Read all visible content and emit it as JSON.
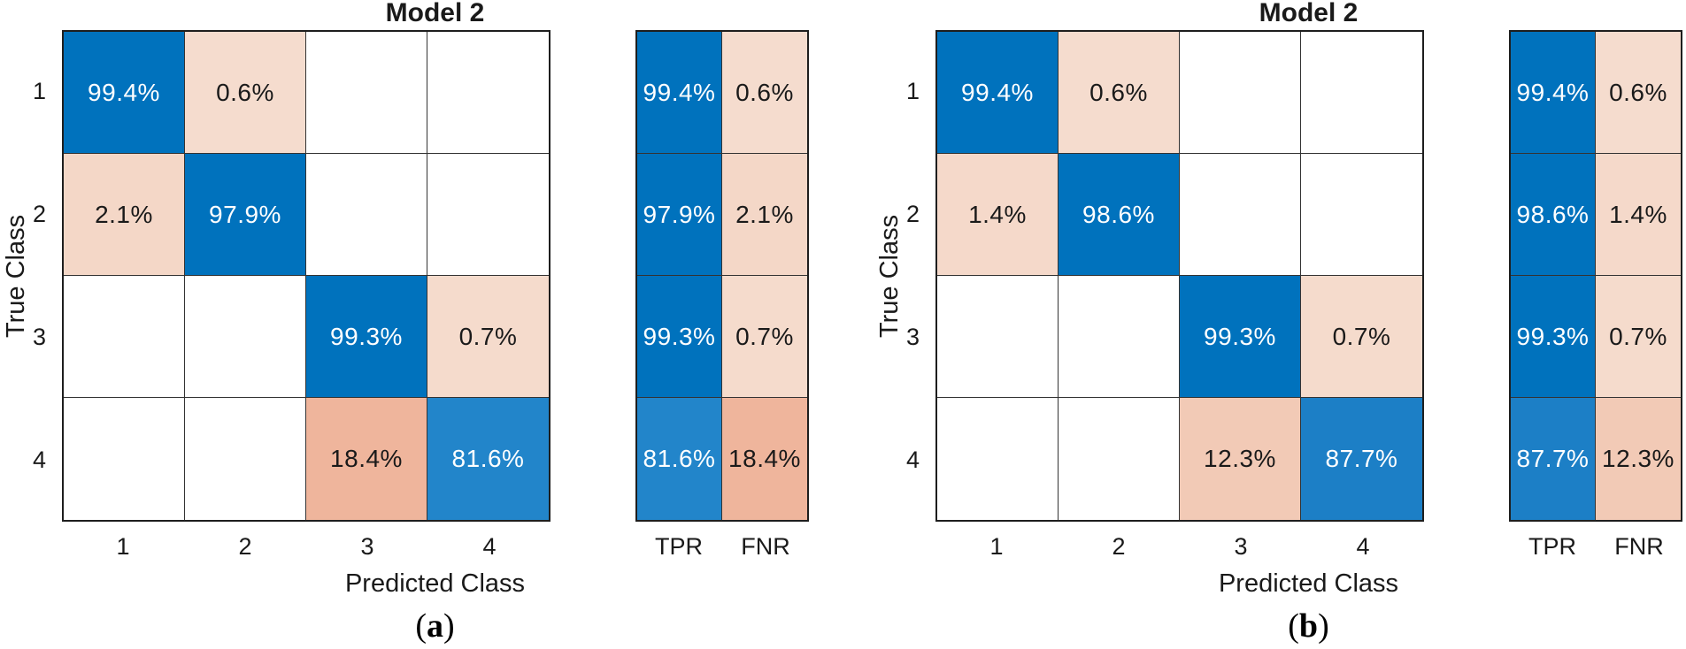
{
  "page": {
    "background": "#ffffff"
  },
  "value_styles": {
    "": {
      "bg": "#ffffff",
      "fg": "#1a1a1a"
    },
    "99.4%": {
      "bg": "#0072bd",
      "fg": "#ffffff"
    },
    "99.3%": {
      "bg": "#0072bd",
      "fg": "#ffffff"
    },
    "98.6%": {
      "bg": "#0072bd",
      "fg": "#ffffff"
    },
    "97.9%": {
      "bg": "#0072bd",
      "fg": "#ffffff"
    },
    "87.7%": {
      "bg": "#1c7fc6",
      "fg": "#ffffff"
    },
    "81.6%": {
      "bg": "#2285ca",
      "fg": "#ffffff"
    },
    "18.4%": {
      "bg": "#efb59c",
      "fg": "#1a1a1a"
    },
    "12.3%": {
      "bg": "#f2cab6",
      "fg": "#1a1a1a"
    },
    "2.1%": {
      "bg": "#f4d7c7",
      "fg": "#1a1a1a"
    },
    "1.4%": {
      "bg": "#f5d9ca",
      "fg": "#1a1a1a"
    },
    "0.7%": {
      "bg": "#f5dbcc",
      "fg": "#1a1a1a"
    },
    "0.6%": {
      "bg": "#f5dcce",
      "fg": "#1a1a1a"
    }
  },
  "panels": [
    {
      "id": "a",
      "title": "Model 2",
      "xlabel": "Predicted Class",
      "ylabel": "True Class",
      "x_tick_labels": [
        "1",
        "2",
        "3",
        "4"
      ],
      "y_tick_labels": [
        "1",
        "2",
        "3",
        "4"
      ],
      "summary_tick_labels": [
        "TPR",
        "FNR"
      ],
      "caption": {
        "open": "(",
        "letter": "a",
        "close": ")"
      },
      "matrix_cells": [
        [
          "99.4%",
          "0.6%",
          "",
          ""
        ],
        [
          "2.1%",
          "97.9%",
          "",
          ""
        ],
        [
          "",
          "",
          "99.3%",
          "0.7%"
        ],
        [
          "",
          "",
          "18.4%",
          "81.6%"
        ]
      ],
      "summary_cells": [
        [
          "99.4%",
          "0.6%"
        ],
        [
          "97.9%",
          "2.1%"
        ],
        [
          "99.3%",
          "0.7%"
        ],
        [
          "81.6%",
          "18.4%"
        ]
      ]
    },
    {
      "id": "b",
      "title": "Model 2",
      "xlabel": "Predicted Class",
      "ylabel": "True Class",
      "x_tick_labels": [
        "1",
        "2",
        "3",
        "4"
      ],
      "y_tick_labels": [
        "1",
        "2",
        "3",
        "4"
      ],
      "summary_tick_labels": [
        "TPR",
        "FNR"
      ],
      "caption": {
        "open": "(",
        "letter": "b",
        "close": ")"
      },
      "matrix_cells": [
        [
          "99.4%",
          "0.6%",
          "",
          ""
        ],
        [
          "1.4%",
          "98.6%",
          "",
          ""
        ],
        [
          "",
          "",
          "99.3%",
          "0.7%"
        ],
        [
          "",
          "",
          "12.3%",
          "87.7%"
        ]
      ],
      "summary_cells": [
        [
          "99.4%",
          "0.6%"
        ],
        [
          "98.6%",
          "1.4%"
        ],
        [
          "99.3%",
          "0.7%"
        ],
        [
          "87.7%",
          "12.3%"
        ]
      ]
    }
  ],
  "chart_data": [
    {
      "type": "heatmap",
      "subtype": "confusion-matrix",
      "panel": "a",
      "title": "Model 2",
      "xlabel": "Predicted Class",
      "ylabel": "True Class",
      "x_ticks": [
        "1",
        "2",
        "3",
        "4"
      ],
      "y_ticks": [
        "1",
        "2",
        "3",
        "4"
      ],
      "units": "percent (row-normalized)",
      "values": [
        [
          99.4,
          0.6,
          null,
          null
        ],
        [
          2.1,
          97.9,
          null,
          null
        ],
        [
          null,
          null,
          99.3,
          0.7
        ],
        [
          null,
          null,
          18.4,
          81.6
        ]
      ],
      "row_summary": {
        "labels": [
          "TPR",
          "FNR"
        ],
        "TPR": [
          99.4,
          97.9,
          99.3,
          81.6
        ],
        "FNR": [
          0.6,
          2.1,
          0.7,
          18.4
        ]
      },
      "colors": {
        "diagonal_full": "#0072bd",
        "off_diagonal_full": "#d95319",
        "empty": "#ffffff"
      },
      "legend": "none",
      "grid": true
    },
    {
      "type": "heatmap",
      "subtype": "confusion-matrix",
      "panel": "b",
      "title": "Model 2",
      "xlabel": "Predicted Class",
      "ylabel": "True Class",
      "x_ticks": [
        "1",
        "2",
        "3",
        "4"
      ],
      "y_ticks": [
        "1",
        "2",
        "3",
        "4"
      ],
      "units": "percent (row-normalized)",
      "values": [
        [
          99.4,
          0.6,
          null,
          null
        ],
        [
          1.4,
          98.6,
          null,
          null
        ],
        [
          null,
          null,
          99.3,
          0.7
        ],
        [
          null,
          null,
          12.3,
          87.7
        ]
      ],
      "row_summary": {
        "labels": [
          "TPR",
          "FNR"
        ],
        "TPR": [
          99.4,
          98.6,
          99.3,
          87.7
        ],
        "FNR": [
          0.6,
          1.4,
          0.7,
          12.3
        ]
      },
      "colors": {
        "diagonal_full": "#0072bd",
        "off_diagonal_full": "#d95319",
        "empty": "#ffffff"
      },
      "legend": "none",
      "grid": true
    }
  ]
}
